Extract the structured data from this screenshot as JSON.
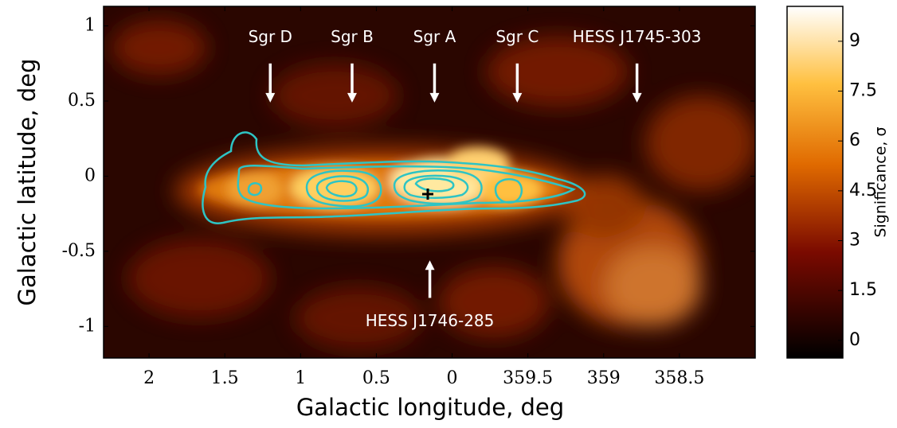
{
  "chart_data": {
    "type": "heatmap",
    "xlabel": "Galactic longitude, deg",
    "ylabel": "Galactic latitude, deg",
    "colorbar_label": "Significance, σ",
    "xlim": [
      2.3,
      -2.0
    ],
    "xticks": [
      2,
      1.5,
      1,
      0.5,
      0,
      {
        "value": -0.5,
        "label": "359.5"
      },
      {
        "value": -1,
        "label": "359"
      },
      {
        "value": -1.5,
        "label": "358.5"
      }
    ],
    "ylim": [
      -1.21,
      1.13
    ],
    "yticks": [
      1,
      0.5,
      0,
      -0.5,
      -1
    ],
    "clim": [
      -0.53,
      10.05
    ],
    "cticks": [
      9,
      7.5,
      6,
      4.5,
      3,
      1.5,
      0
    ],
    "annotations": [
      {
        "text": "Sgr D",
        "x": 1.2,
        "y": 0.92,
        "arrow": [
          0.75,
          0.49
        ]
      },
      {
        "text": "Sgr B",
        "x": 0.66,
        "y": 0.92,
        "arrow": [
          0.75,
          0.49
        ]
      },
      {
        "text": "Sgr A",
        "x": 0.116,
        "y": 0.92,
        "arrow": [
          0.75,
          0.49
        ]
      },
      {
        "text": "Sgr C",
        "x": -0.43,
        "y": 0.92,
        "arrow": [
          0.75,
          0.49
        ]
      },
      {
        "text": "HESS J1745-303",
        "x": -1.22,
        "y": 0.92,
        "arrow": [
          0.75,
          0.49
        ]
      },
      {
        "text": "HESS J1746-285",
        "x": 0.147,
        "y": -0.97,
        "arrow": [
          -0.81,
          -0.56
        ]
      }
    ]
  }
}
